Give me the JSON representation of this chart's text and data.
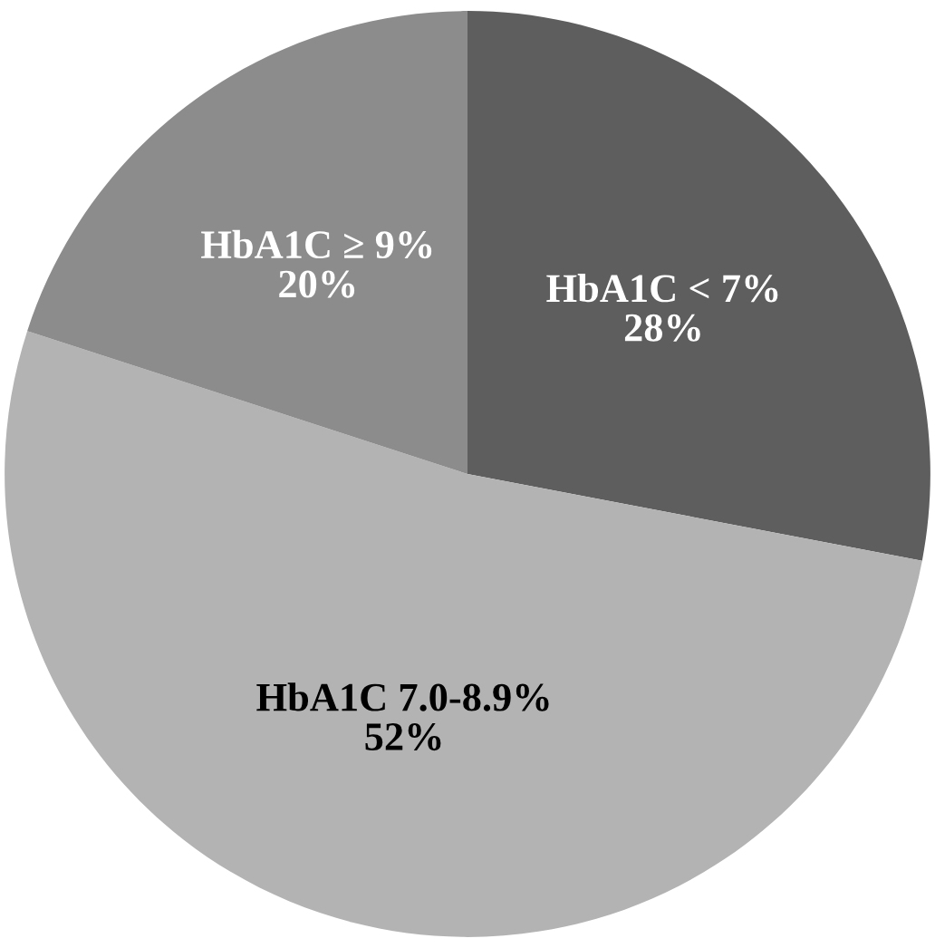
{
  "chart_data": {
    "type": "pie",
    "categories": [
      "HbA1C < 7%",
      "HbA1C 7.0-8.9%",
      "HbA1C ≥ 9%"
    ],
    "values": [
      28,
      52,
      20
    ],
    "colors": [
      "#5e5e5e",
      "#b3b3b3",
      "#8c8c8c"
    ],
    "value_labels": [
      "28%",
      "52%",
      "20%"
    ]
  }
}
